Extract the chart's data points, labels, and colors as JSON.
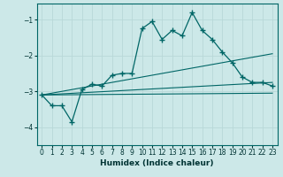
{
  "xlabel": "Humidex (Indice chaleur)",
  "bg_color": "#cce8e8",
  "grid_color": "#b8d8d8",
  "line_color": "#006666",
  "xlim": [
    -0.5,
    23.5
  ],
  "ylim": [
    -4.5,
    -0.55
  ],
  "yticks": [
    -4,
    -3,
    -2,
    -1
  ],
  "xticks": [
    0,
    1,
    2,
    3,
    4,
    5,
    6,
    7,
    8,
    9,
    10,
    11,
    12,
    13,
    14,
    15,
    16,
    17,
    18,
    19,
    20,
    21,
    22,
    23
  ],
  "main_x": [
    0,
    1,
    2,
    3,
    4,
    5,
    6,
    7,
    8,
    9,
    10,
    11,
    12,
    13,
    14,
    15,
    16,
    17,
    18,
    19,
    20,
    21,
    22,
    23
  ],
  "main_y": [
    -3.1,
    -3.4,
    -3.4,
    -3.85,
    -2.95,
    -2.8,
    -2.85,
    -2.55,
    -2.5,
    -2.5,
    -1.25,
    -1.05,
    -1.55,
    -1.3,
    -1.45,
    -0.8,
    -1.3,
    -1.55,
    -1.9,
    -2.2,
    -2.6,
    -2.75,
    -2.75,
    -2.85
  ],
  "line1_x": [
    0,
    23
  ],
  "line1_y": [
    -3.1,
    -1.95
  ],
  "line2_x": [
    0,
    23
  ],
  "line2_y": [
    -3.1,
    -2.75
  ],
  "line3_x": [
    0,
    23
  ],
  "line3_y": [
    -3.1,
    -3.05
  ]
}
